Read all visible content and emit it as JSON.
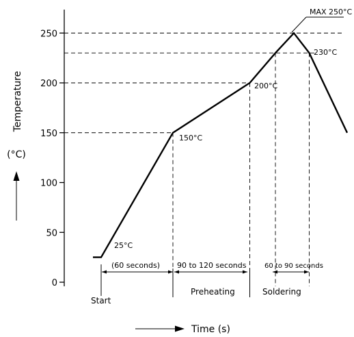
{
  "chart_data": {
    "type": "line",
    "ylabel": "Temperature",
    "ylabel_unit": "(°C)",
    "xlabel": "Time (s)",
    "ylim": [
      0,
      250
    ],
    "yticks": [
      0,
      50,
      100,
      150,
      200,
      250
    ],
    "ytick_labels": [
      "0",
      "50",
      "100",
      "150",
      "200",
      "250"
    ],
    "grid": false,
    "series": [
      {
        "points": [
          [
            -8,
            25
          ],
          [
            0,
            25
          ],
          [
            70,
            150
          ],
          [
            145,
            200
          ],
          [
            170,
            230
          ],
          [
            188,
            250
          ],
          [
            203,
            230
          ],
          [
            240,
            150
          ]
        ]
      }
    ],
    "reference_lines": [
      {
        "y": 150,
        "x_end": 70
      },
      {
        "y": 200,
        "x_end": 145
      },
      {
        "y": 230,
        "x_end": 203
      },
      {
        "y": 250,
        "x_end": 210
      }
    ],
    "vertical_lines": [
      70,
      145,
      170,
      203
    ],
    "annotations": {
      "start_temp": "25°C",
      "preheat_start_temp": "150°C",
      "preheat_end_temp": "200°C",
      "max_temp": "MAX 250°C",
      "solder_end_temp": "230°C"
    },
    "durations": {
      "ramp": "(60 seconds)",
      "preheat": "90 to 120 seconds",
      "solder": "60 to 90 seconds"
    },
    "phases": {
      "start": "Start",
      "preheating": "Preheating",
      "soldering": "Soldering"
    }
  }
}
